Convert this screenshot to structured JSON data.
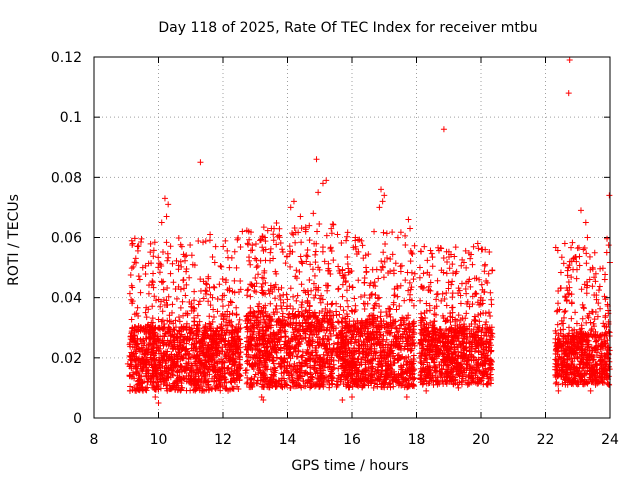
{
  "chart_data": {
    "type": "scatter",
    "title": "Day 118 of 2025, Rate Of TEC Index for receiver mtbu",
    "xlabel": "GPS time / hours",
    "ylabel": "ROTI / TECUs",
    "xlim": [
      8,
      24
    ],
    "ylim": [
      0,
      0.12
    ],
    "xticks": [
      8,
      10,
      12,
      14,
      16,
      18,
      20,
      22,
      24
    ],
    "yticks": [
      0,
      0.02,
      0.04,
      0.06,
      0.08,
      0.1,
      0.12
    ],
    "xtick_labels": [
      "8",
      "10",
      "12",
      "14",
      "16",
      "18",
      "20",
      "22",
      "24"
    ],
    "ytick_labels": [
      "0",
      "0.02",
      "0.04",
      "0.06",
      "0.08",
      "0.1",
      "0.12"
    ],
    "grid": true,
    "marker": "+",
    "color": "#ff0000",
    "dense_segments": [
      {
        "x_start": 9.1,
        "x_end": 12.55,
        "y_low": 0.009,
        "y_high": 0.03,
        "spread_high": 0.06
      },
      {
        "x_start": 12.7,
        "x_end": 15.45,
        "y_low": 0.01,
        "y_high": 0.034,
        "spread_high": 0.065
      },
      {
        "x_start": 15.5,
        "x_end": 17.95,
        "y_low": 0.01,
        "y_high": 0.032,
        "spread_high": 0.062
      },
      {
        "x_start": 18.1,
        "x_end": 20.35,
        "y_low": 0.011,
        "y_high": 0.03,
        "spread_high": 0.057
      },
      {
        "x_start": 22.3,
        "x_end": 24.0,
        "y_low": 0.011,
        "y_high": 0.028,
        "spread_high": 0.06
      }
    ],
    "series": [
      {
        "name": "ROTI",
        "points": [
          [
            11.3,
            0.085
          ],
          [
            14.9,
            0.086
          ],
          [
            15.1,
            0.078
          ],
          [
            16.9,
            0.076
          ],
          [
            18.85,
            0.096
          ],
          [
            22.75,
            0.119
          ],
          [
            22.72,
            0.108
          ],
          [
            23.98,
            0.074
          ],
          [
            10.2,
            0.073
          ],
          [
            10.25,
            0.067
          ],
          [
            10.3,
            0.071
          ],
          [
            14.2,
            0.072
          ],
          [
            14.1,
            0.07
          ],
          [
            14.95,
            0.075
          ],
          [
            15.2,
            0.079
          ],
          [
            17.0,
            0.074
          ],
          [
            16.95,
            0.072
          ],
          [
            17.75,
            0.066
          ],
          [
            23.1,
            0.069
          ],
          [
            23.25,
            0.065
          ],
          [
            14.4,
            0.067
          ],
          [
            13.5,
            0.063
          ],
          [
            12.6,
            0.062
          ],
          [
            11.6,
            0.061
          ],
          [
            9.2,
            0.058
          ],
          [
            9.35,
            0.057
          ],
          [
            15.55,
            0.061
          ],
          [
            16.1,
            0.059
          ],
          [
            19.9,
            0.058
          ],
          [
            20.05,
            0.056
          ],
          [
            22.6,
            0.058
          ],
          [
            23.3,
            0.06
          ],
          [
            23.9,
            0.055
          ],
          [
            10.1,
            0.065
          ],
          [
            14.8,
            0.068
          ],
          [
            16.85,
            0.07
          ],
          [
            17.8,
            0.063
          ],
          [
            13.3,
            0.06
          ],
          [
            9.05,
            0.018
          ],
          [
            9.9,
            0.007
          ],
          [
            10.0,
            0.005
          ],
          [
            13.2,
            0.007
          ],
          [
            13.25,
            0.006
          ],
          [
            15.7,
            0.006
          ],
          [
            16.0,
            0.007
          ],
          [
            17.7,
            0.007
          ],
          [
            18.3,
            0.009
          ],
          [
            19.3,
            0.01
          ],
          [
            22.4,
            0.009
          ],
          [
            23.4,
            0.009
          ]
        ]
      }
    ]
  }
}
